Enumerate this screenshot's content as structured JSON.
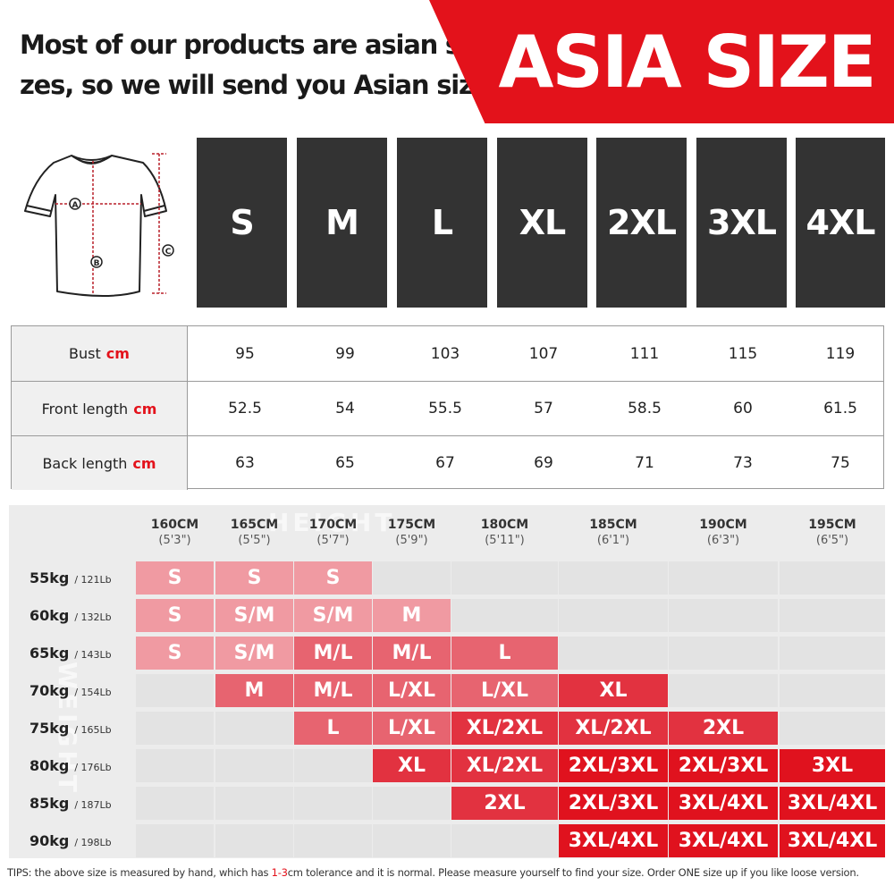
{
  "header": {
    "line1": "Most of our products are asian si-",
    "line2": "zes, so we will send you Asian sizes",
    "banner": "ASIA SIZE"
  },
  "shirt_diagram": {
    "labels": {
      "a": "A",
      "b": "B",
      "c": "C"
    }
  },
  "sizes": [
    "S",
    "M",
    "L",
    "XL",
    "2XL",
    "3XL",
    "4XL"
  ],
  "measurements": [
    {
      "label": "Bust",
      "unit": "cm",
      "values": [
        "95",
        "99",
        "103",
        "107",
        "111",
        "115",
        "119"
      ]
    },
    {
      "label": "Front length",
      "unit": "cm",
      "values": [
        "52.5",
        "54",
        "55.5",
        "57",
        "58.5",
        "60",
        "61.5"
      ]
    },
    {
      "label": "Back length",
      "unit": "cm",
      "values": [
        "63",
        "65",
        "67",
        "69",
        "71",
        "73",
        "75"
      ]
    }
  ],
  "fit_chart": {
    "watermark_height": "HEIGHT",
    "watermark_weight": "WEIGHT",
    "heights": [
      {
        "cm": "160CM",
        "ft": "(5'3\")"
      },
      {
        "cm": "165CM",
        "ft": "(5'5\")"
      },
      {
        "cm": "170CM",
        "ft": "(5'7\")"
      },
      {
        "cm": "175CM",
        "ft": "(5'9\")"
      },
      {
        "cm": "180CM",
        "ft": "(5'11\")"
      },
      {
        "cm": "185CM",
        "ft": "(6'1\")"
      },
      {
        "cm": "190CM",
        "ft": "(6'3\")"
      },
      {
        "cm": "195CM",
        "ft": "(6'5\")"
      }
    ],
    "weights": [
      {
        "kg": "55kg",
        "lb": "/ 121Lb"
      },
      {
        "kg": "60kg",
        "lb": "/ 132Lb"
      },
      {
        "kg": "65kg",
        "lb": "/ 143Lb"
      },
      {
        "kg": "70kg",
        "lb": "/ 154Lb"
      },
      {
        "kg": "75kg",
        "lb": "/ 165Lb"
      },
      {
        "kg": "80kg",
        "lb": "/ 176Lb"
      },
      {
        "kg": "85kg",
        "lb": "/ 187Lb"
      },
      {
        "kg": "90kg",
        "lb": "/ 198Lb"
      }
    ],
    "grid": [
      [
        "S",
        "S",
        "S",
        "",
        "",
        "",
        "",
        ""
      ],
      [
        "S",
        "S/M",
        "S/M",
        "M",
        "",
        "",
        "",
        ""
      ],
      [
        "S",
        "S/M",
        "M/L",
        "M/L",
        "L",
        "",
        "",
        ""
      ],
      [
        "",
        "M",
        "M/L",
        "L/XL",
        "L/XL",
        "XL",
        "",
        ""
      ],
      [
        "",
        "",
        "L",
        "L/XL",
        "XL/2XL",
        "XL/2XL",
        "2XL",
        ""
      ],
      [
        "",
        "",
        "",
        "XL",
        "XL/2XL",
        "2XL/3XL",
        "2XL/3XL",
        "3XL"
      ],
      [
        "",
        "",
        "",
        "",
        "2XL",
        "2XL/3XL",
        "3XL/4XL",
        "3XL/4XL"
      ],
      [
        "",
        "",
        "",
        "",
        "",
        "3XL/4XL",
        "3XL/4XL",
        "3XL/4XL"
      ]
    ],
    "shades": [
      [
        1,
        1,
        1,
        0,
        0,
        0,
        0,
        0
      ],
      [
        1,
        1,
        1,
        1,
        0,
        0,
        0,
        0
      ],
      [
        1,
        1,
        2,
        2,
        2,
        0,
        0,
        0
      ],
      [
        0,
        2,
        2,
        2,
        2,
        3,
        0,
        0
      ],
      [
        0,
        0,
        2,
        2,
        3,
        3,
        3,
        0
      ],
      [
        0,
        0,
        0,
        3,
        3,
        4,
        4,
        4
      ],
      [
        0,
        0,
        0,
        0,
        3,
        4,
        4,
        4
      ],
      [
        0,
        0,
        0,
        0,
        0,
        4,
        4,
        4
      ]
    ]
  },
  "tips": {
    "prefix": "TIPS:  the above size is measured by hand, which has ",
    "tolerance": "1-3",
    "suffix": "cm tolerance and it is normal. Please measure yourself to find your size. Order ONE size up if you like loose version."
  },
  "colors": {
    "accent": "#e3121b",
    "size_box": "#333333"
  }
}
